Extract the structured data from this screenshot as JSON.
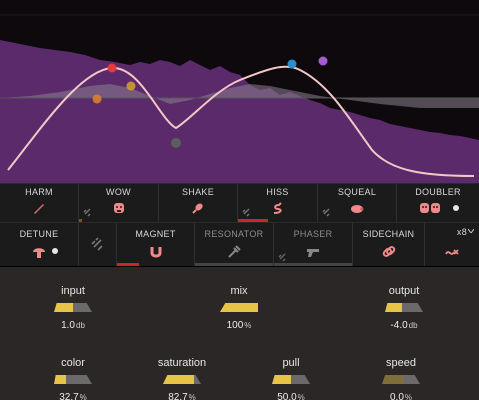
{
  "display": {
    "label": "spectrum-eq-display",
    "colors": {
      "spectrum": "#5e2a6f",
      "curve": "#f3c7c7",
      "background": "#0d090d"
    },
    "nodes": [
      {
        "name": "node-red",
        "color": "#e23b3b"
      },
      {
        "name": "node-orange",
        "color": "#e0862a"
      },
      {
        "name": "node-gold",
        "color": "#d6a42a"
      },
      {
        "name": "node-grey",
        "color": "#5d5d5d"
      },
      {
        "name": "node-blue",
        "color": "#2a8fcf"
      },
      {
        "name": "node-purple",
        "color": "#a45bd1"
      }
    ]
  },
  "modules_row1": [
    {
      "label": "HARM",
      "icon": "guitar-pick-icon"
    },
    {
      "label": "WOW",
      "icon": "face-icon"
    },
    {
      "label": "SHAKE",
      "icon": "maraca-icon"
    },
    {
      "label": "HISS",
      "icon": "snake-icon"
    },
    {
      "label": "SQUEAL",
      "icon": "pig-icon"
    },
    {
      "label": "DOUBLER",
      "icon": "masks-icon"
    }
  ],
  "modules_row2": [
    {
      "label": "DETUNE",
      "icon": "mushroom-icon"
    },
    {
      "label": "MAGNET",
      "icon": "magnet-icon"
    },
    {
      "label": "RESONATOR",
      "icon": "tuning-fork-icon"
    },
    {
      "label": "PHASER",
      "icon": "blaster-icon"
    },
    {
      "label": "SIDECHAIN",
      "icon": "link-icon"
    },
    {
      "label": "x8",
      "icon": "stack-icon"
    }
  ],
  "knobs": {
    "input": {
      "name": "input",
      "value": "1.0",
      "unit": "db",
      "level": 0.5
    },
    "mix": {
      "name": "mix",
      "value": "100",
      "unit": "%",
      "level": 1.0
    },
    "output": {
      "name": "output",
      "value": "-4.0",
      "unit": "db",
      "level": 0.45
    },
    "color": {
      "name": "color",
      "value": "32.7",
      "unit": "%",
      "level": 0.327
    },
    "saturation": {
      "name": "saturation",
      "value": "82.7",
      "unit": "%",
      "level": 0.827
    },
    "pull": {
      "name": "pull",
      "value": "50.0",
      "unit": "%",
      "level": 0.5
    },
    "speed": {
      "name": "speed",
      "value": "0.0",
      "unit": "%",
      "level": 0.0
    }
  }
}
